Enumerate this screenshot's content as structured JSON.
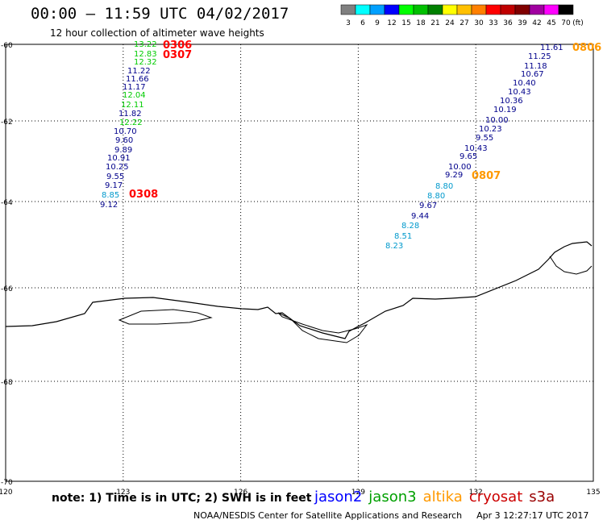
{
  "header": {
    "title": "00:00 – 11:59 UTC 04/02/2017",
    "subtitle": "12 hour collection of altimeter wave heights"
  },
  "colorbar": {
    "unit": "(ft)",
    "swatches": [
      {
        "label": "3",
        "color": "#808080"
      },
      {
        "label": "6",
        "color": "#00ffff"
      },
      {
        "label": "9",
        "color": "#00a0ff"
      },
      {
        "label": "12",
        "color": "#0000ff"
      },
      {
        "label": "15",
        "color": "#00ff00"
      },
      {
        "label": "18",
        "color": "#00c000"
      },
      {
        "label": "21",
        "color": "#008000"
      },
      {
        "label": "24",
        "color": "#ffff00"
      },
      {
        "label": "27",
        "color": "#ffc000"
      },
      {
        "label": "30",
        "color": "#ff8000"
      },
      {
        "label": "33",
        "color": "#ff0000"
      },
      {
        "label": "36",
        "color": "#c00000"
      },
      {
        "label": "39",
        "color": "#800000"
      },
      {
        "label": "42",
        "color": "#a000a0"
      },
      {
        "label": "45",
        "color": "#ff00ff"
      },
      {
        "label": "70",
        "color": "#000000"
      }
    ]
  },
  "map": {
    "lon_ticks": [
      120,
      123,
      126,
      129,
      132,
      135
    ],
    "lat_ticks": [
      -60,
      -62,
      -64,
      -66,
      -68,
      -70
    ],
    "lon_range": [
      120,
      135
    ],
    "lat_range": [
      -60,
      -70
    ],
    "colors": {
      "jason2": "#00008b",
      "jason3": "#00cc00",
      "altika_dark": "#0099cc",
      "time_red": "#ff0000",
      "time_orange": "#ff9900"
    },
    "tracks": [
      {
        "items": [
          {
            "v": "13.22",
            "c": "jason3"
          },
          {
            "v": "12.83",
            "c": "jason3"
          },
          {
            "v": "12.32",
            "c": "jason3"
          },
          {
            "v": "11.22",
            "c": "jason2"
          },
          {
            "v": "11.66",
            "c": "jason2"
          },
          {
            "v": "11.17",
            "c": "jason2"
          },
          {
            "v": "12.04",
            "c": "jason3"
          },
          {
            "v": "12.11",
            "c": "jason3"
          },
          {
            "v": "11.82",
            "c": "jason2"
          },
          {
            "v": "12.22",
            "c": "jason3"
          },
          {
            "v": "10.70",
            "c": "jason2"
          },
          {
            "v": "9.60",
            "c": "jason2"
          },
          {
            "v": "9.89",
            "c": "jason2"
          },
          {
            "v": "10.91",
            "c": "jason2"
          },
          {
            "v": "10.25",
            "c": "jason2"
          },
          {
            "v": "9.55",
            "c": "jason2"
          },
          {
            "v": "9.17",
            "c": "jason2"
          },
          {
            "v": "8.85",
            "c": "altika_dark"
          },
          {
            "v": "9.12",
            "c": "jason2"
          }
        ]
      },
      {
        "items": [
          {
            "v": "11.61",
            "c": "jason2"
          },
          {
            "v": "11.25",
            "c": "jason2"
          },
          {
            "v": "11.18",
            "c": "jason2"
          },
          {
            "v": "10.67",
            "c": "jason2"
          },
          {
            "v": "10.40",
            "c": "jason2"
          },
          {
            "v": "10.43",
            "c": "jason2"
          },
          {
            "v": "10.36",
            "c": "jason2"
          },
          {
            "v": "10.19",
            "c": "jason2"
          },
          {
            "v": "10.00",
            "c": "jason2"
          },
          {
            "v": "10.23",
            "c": "jason2"
          },
          {
            "v": "9.55",
            "c": "jason2"
          },
          {
            "v": "10.43",
            "c": "jason2"
          },
          {
            "v": "9.65",
            "c": "jason2"
          },
          {
            "v": "10.00",
            "c": "jason2"
          },
          {
            "v": "9.29",
            "c": "jason2"
          },
          {
            "v": "8.80",
            "c": "altika_dark"
          },
          {
            "v": "8.80",
            "c": "altika_dark"
          },
          {
            "v": "9.67",
            "c": "jason2"
          },
          {
            "v": "9.44",
            "c": "jason2"
          },
          {
            "v": "8.28",
            "c": "altika_dark"
          },
          {
            "v": "8.51",
            "c": "altika_dark"
          },
          {
            "v": "8.23",
            "c": "altika_dark"
          }
        ]
      }
    ],
    "time_labels": [
      {
        "v": "0306",
        "c": "time_red"
      },
      {
        "v": "0307",
        "c": "time_red"
      },
      {
        "v": "0308",
        "c": "time_red"
      },
      {
        "v": "0806",
        "c": "time_orange"
      },
      {
        "v": "0807",
        "c": "time_orange"
      }
    ]
  },
  "footer": {
    "note": "note: 1) Time is in UTC; 2) SWH is in feet",
    "satellites": [
      {
        "name": "jason2",
        "color": "#0000ff"
      },
      {
        "name": "jason3",
        "color": "#00a000"
      },
      {
        "name": "altika",
        "color": "#ff9900"
      },
      {
        "name": "cryosat",
        "color": "#cc0000"
      },
      {
        "name": "s3a",
        "color": "#990000"
      }
    ],
    "credit": "NOAA/NESDIS Center for Satellite Applications and Research",
    "timestamp": "Apr  3 12:27:17 UTC 2017"
  }
}
